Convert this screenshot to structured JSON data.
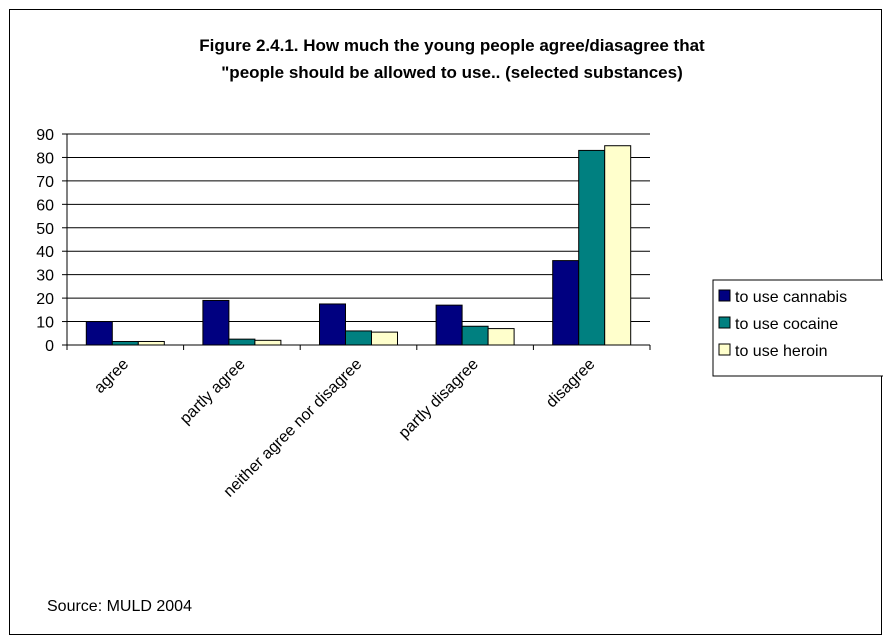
{
  "chart_data": {
    "type": "bar",
    "title": "Figure 2.4.1. How much the young people agree/diasagree that",
    "subtitle": "\"people should be allowed to use.. (selected substances)",
    "categories": [
      "agree",
      "partly agree",
      "neither agree nor disagree",
      "partly disagree",
      "disagree"
    ],
    "series": [
      {
        "name": "to use cannabis",
        "color": "#000080",
        "values": [
          10,
          19,
          17.5,
          17,
          36
        ]
      },
      {
        "name": "to use cocaine",
        "color": "#008080",
        "values": [
          1.5,
          2.5,
          6,
          8,
          83
        ]
      },
      {
        "name": "to use heroin",
        "color": "#FFFFCC",
        "values": [
          1.5,
          2,
          5.5,
          7,
          85
        ]
      }
    ],
    "ylim": [
      0,
      90
    ],
    "yticks": [
      0,
      10,
      20,
      30,
      40,
      50,
      60,
      70,
      80,
      90
    ],
    "grid": true,
    "legend_position": "right",
    "source": "Source: MULD 2004"
  }
}
